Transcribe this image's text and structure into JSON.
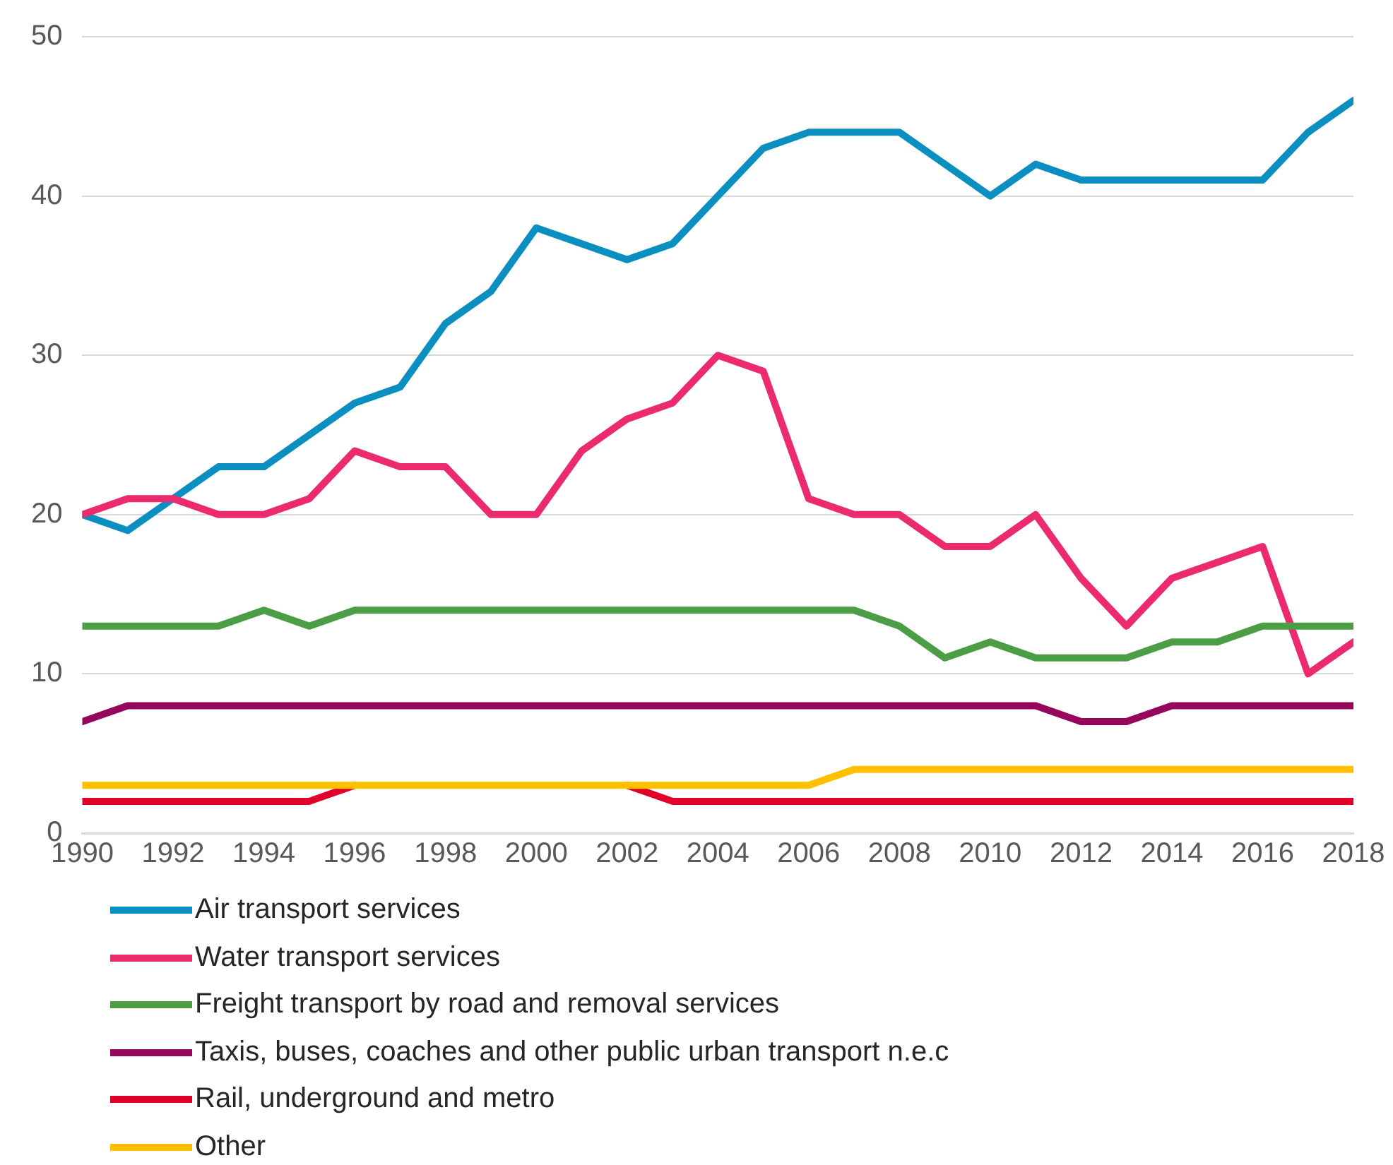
{
  "chart_data": {
    "type": "line",
    "x": [
      1990,
      1991,
      1992,
      1993,
      1994,
      1995,
      1996,
      1997,
      1998,
      1999,
      2000,
      2001,
      2002,
      2003,
      2004,
      2005,
      2006,
      2007,
      2008,
      2009,
      2010,
      2011,
      2012,
      2013,
      2014,
      2015,
      2016,
      2017,
      2018
    ],
    "xlim": [
      1990,
      2018
    ],
    "xticks": [
      1990,
      1992,
      1994,
      1996,
      1998,
      2000,
      2002,
      2004,
      2006,
      2008,
      2010,
      2012,
      2014,
      2016,
      2018
    ],
    "ylim": [
      0,
      50
    ],
    "yticks": [
      0,
      10,
      20,
      30,
      40,
      50
    ],
    "grid": "y",
    "legend": "bottom",
    "marker": "none",
    "line_style": "solid",
    "series": [
      {
        "name": "Air transport services",
        "color": "#0a8fc0",
        "values": [
          20,
          19,
          21,
          23,
          23,
          25,
          27,
          28,
          32,
          34,
          38,
          37,
          36,
          37,
          40,
          43,
          44,
          44,
          44,
          42,
          40,
          42,
          41,
          41,
          41,
          41,
          41,
          44,
          46
        ]
      },
      {
        "name": "Water transport services",
        "color": "#ec2a6e",
        "values": [
          20,
          21,
          21,
          20,
          20,
          21,
          24,
          23,
          23,
          20,
          20,
          24,
          26,
          27,
          30,
          29,
          21,
          20,
          20,
          18,
          18,
          20,
          16,
          13,
          16,
          17,
          18,
          10,
          12
        ]
      },
      {
        "name": "Freight transport by road and removal services",
        "color": "#4b9e45",
        "values": [
          13,
          13,
          13,
          13,
          14,
          13,
          14,
          14,
          14,
          14,
          14,
          14,
          14,
          14,
          14,
          14,
          14,
          14,
          13,
          11,
          12,
          11,
          11,
          11,
          12,
          12,
          13,
          13,
          13
        ]
      },
      {
        "name": "Taxis, buses, coaches and other public urban transport n.e.c",
        "color": "#96065a",
        "values": [
          7,
          8,
          8,
          8,
          8,
          8,
          8,
          8,
          8,
          8,
          8,
          8,
          8,
          8,
          8,
          8,
          8,
          8,
          8,
          8,
          8,
          8,
          7,
          7,
          8,
          8,
          8,
          8,
          8
        ]
      },
      {
        "name": "Rail, underground and metro",
        "color": "#e0002a",
        "values": [
          2,
          2,
          2,
          2,
          2,
          2,
          3,
          null,
          null,
          null,
          null,
          null,
          3,
          2,
          2,
          2,
          2,
          2,
          2,
          2,
          2,
          2,
          2,
          2,
          2,
          2,
          2,
          2,
          2
        ]
      },
      {
        "name": "Other",
        "color": "#ffc000",
        "values": [
          3,
          3,
          3,
          3,
          3,
          3,
          3,
          3,
          3,
          3,
          3,
          3,
          3,
          3,
          3,
          3,
          3,
          4,
          4,
          4,
          4,
          4,
          4,
          4,
          4,
          4,
          4,
          4,
          4
        ]
      }
    ]
  }
}
